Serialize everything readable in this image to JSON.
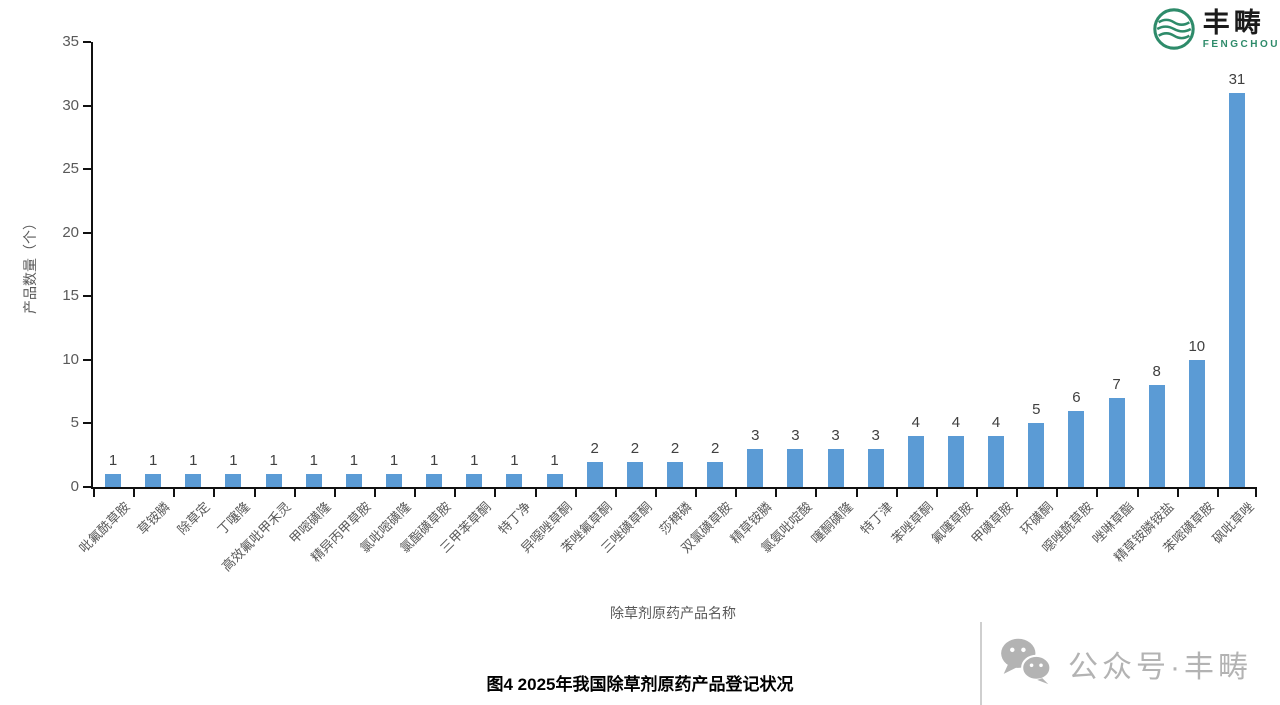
{
  "branding": {
    "logo_cn": "丰畴",
    "logo_en": "FENGCHOU",
    "logo_color": "#2e8b6a"
  },
  "caption": "图4 2025年我国除草剂原药产品登记状况",
  "watermark": {
    "text": "公众号·丰畴",
    "icon": "wechat-icon",
    "color": "#b3b3b3"
  },
  "chart_data": {
    "type": "bar",
    "title": "图4 2025年我国除草剂原药产品登记状况",
    "xlabel": "除草剂原药产品名称",
    "ylabel": "产品数量（个）",
    "ylim": [
      0,
      35
    ],
    "ytick_step": 5,
    "grid": false,
    "legend": "none",
    "bar_color": "#5b9bd5",
    "categories": [
      "吡氟酰草胺",
      "草铵膦",
      "除草定",
      "丁噻隆",
      "高效氟吡甲禾灵",
      "甲嘧磺隆",
      "精异丙甲草胺",
      "氯吡嘧磺隆",
      "氯酯磺草胺",
      "三甲苯草酮",
      "特丁净",
      "异噁唑草酮",
      "苯唑氟草酮",
      "三唑磺草酮",
      "莎稗磷",
      "双氯磺草胺",
      "精草铵膦",
      "氯氨吡啶酸",
      "噻酮磺隆",
      "特丁津",
      "苯唑草酮",
      "氟噻草胺",
      "甲磺草胺",
      "环磺酮",
      "噁唑酰草胺",
      "唑啉草酯",
      "精草铵膦铵盐",
      "苯嘧磺草胺",
      "砜吡草唑"
    ],
    "values": [
      1,
      1,
      1,
      1,
      1,
      1,
      1,
      1,
      1,
      1,
      1,
      1,
      2,
      2,
      2,
      2,
      3,
      3,
      3,
      3,
      4,
      4,
      4,
      5,
      6,
      7,
      8,
      10,
      31
    ]
  }
}
